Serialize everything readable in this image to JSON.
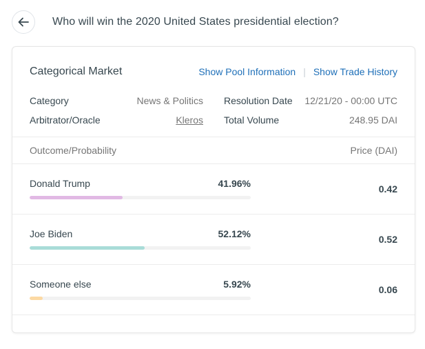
{
  "header": {
    "back_icon": "arrow-left-icon",
    "title": "Who will win the 2020 United States presidential election?"
  },
  "market": {
    "type": "Categorical Market",
    "links": {
      "pool_info": "Show Pool Information",
      "separator": "|",
      "trade_history": "Show Trade History"
    },
    "info": {
      "category_label": "Category",
      "category_value": "News & Politics",
      "arbitrator_label": "Arbitrator/Oracle",
      "arbitrator_value": "Kleros",
      "resolution_label": "Resolution Date",
      "resolution_value": "12/21/20 - 00:00 UTC",
      "volume_label": "Total Volume",
      "volume_value": "248.95 DAI"
    },
    "table": {
      "col_outcome": "Outcome/Probability",
      "col_price": "Price (DAI)"
    },
    "outcomes": [
      {
        "name": "Donald Trump",
        "probability": "41.96%",
        "probability_value": 41.96,
        "price": "0.42",
        "color": "#e1b9e4"
      },
      {
        "name": "Joe Biden",
        "probability": "52.12%",
        "probability_value": 52.12,
        "price": "0.52",
        "color": "#a9dcd8"
      },
      {
        "name": "Someone else",
        "probability": "5.92%",
        "probability_value": 5.92,
        "price": "0.06",
        "color": "#fcd9a3"
      }
    ]
  }
}
